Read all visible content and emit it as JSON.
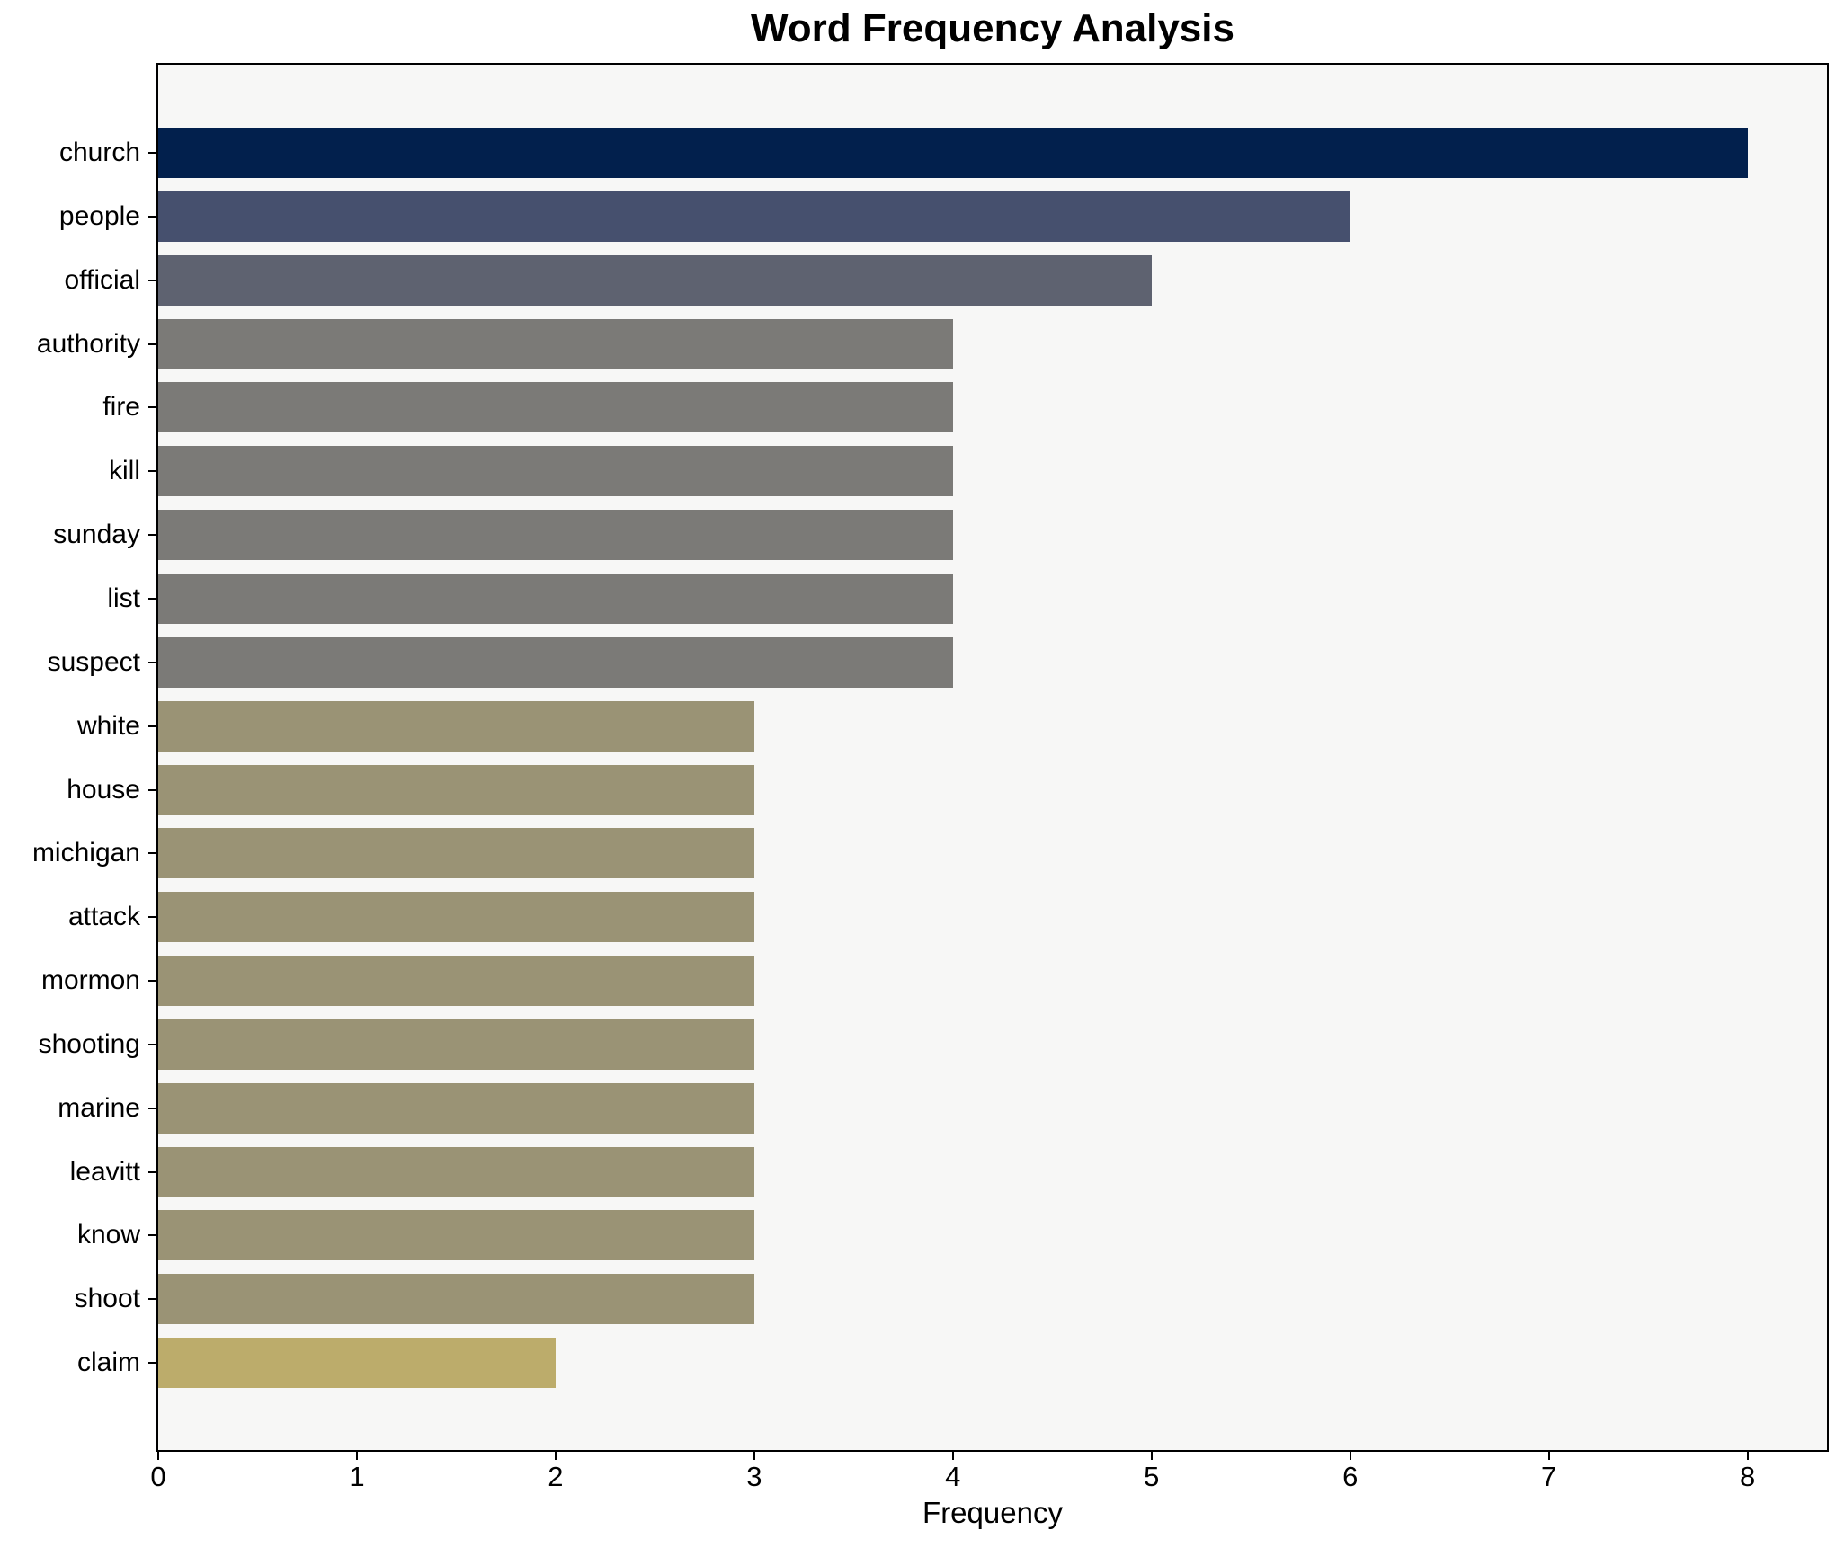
{
  "figure": {
    "title": "Word Frequency Analysis",
    "xlabel": "Frequency"
  },
  "chart_data": {
    "type": "bar",
    "orientation": "horizontal",
    "title": "Word Frequency Analysis",
    "xlabel": "Frequency",
    "ylabel": "",
    "categories": [
      "church",
      "people",
      "official",
      "authority",
      "fire",
      "kill",
      "sunday",
      "list",
      "suspect",
      "white",
      "house",
      "michigan",
      "attack",
      "mormon",
      "shooting",
      "marine",
      "leavitt",
      "know",
      "shoot",
      "claim"
    ],
    "values": [
      8,
      6,
      5,
      4,
      4,
      4,
      4,
      4,
      4,
      3,
      3,
      3,
      3,
      3,
      3,
      3,
      3,
      3,
      3,
      2
    ],
    "bar_colors": [
      "#02204d",
      "#46506e",
      "#5e6270",
      "#7b7a77",
      "#7b7a77",
      "#7b7a77",
      "#7b7a77",
      "#7b7a77",
      "#7b7a77",
      "#9a9375",
      "#9a9375",
      "#9a9375",
      "#9a9375",
      "#9a9375",
      "#9a9375",
      "#9a9375",
      "#9a9375",
      "#9a9375",
      "#9a9375",
      "#bcac6b"
    ],
    "xticks": [
      0,
      1,
      2,
      3,
      4,
      5,
      6,
      7,
      8
    ],
    "xlim": [
      0,
      8.4
    ],
    "grid": false,
    "legend": false,
    "plot_background": "#f7f7f6",
    "figure_background": "#ffffff",
    "spine_color": "#000000",
    "text_color": "#000000"
  }
}
